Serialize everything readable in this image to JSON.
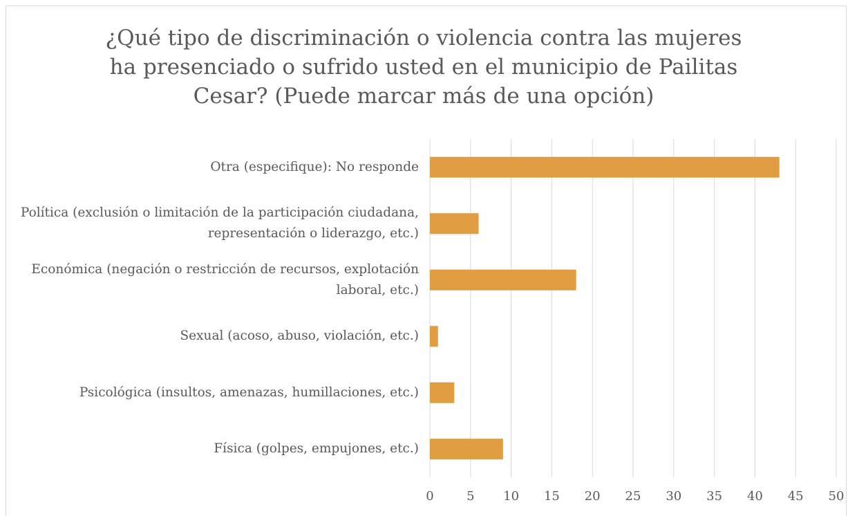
{
  "chart_data": {
    "type": "barh",
    "title": "¿Qué tipo de discriminación o violencia contra las mujeres ha presenciado o sufrido usted en el municipio de Pailitas Cesar? (Puede marcar más de una opción)",
    "categories": [
      "Otra (especifique): No responde",
      "Política (exclusión o limitación de la participación ciudadana, representación o liderazgo, etc.)",
      "Económica (negación o restricción de recursos, explotación laboral, etc.)",
      "Sexual (acoso, abuso, violación, etc.)",
      "Psicológica (insultos, amenazas, humillaciones, etc.)",
      "Física (golpes, empujones, etc.)"
    ],
    "values": [
      43,
      6,
      18,
      1,
      3,
      9
    ],
    "color": "#e09d42",
    "xlim": [
      0,
      50
    ],
    "xticks": [
      0,
      5,
      10,
      15,
      20,
      25,
      30,
      35,
      40,
      45,
      50
    ],
    "grid": true
  }
}
